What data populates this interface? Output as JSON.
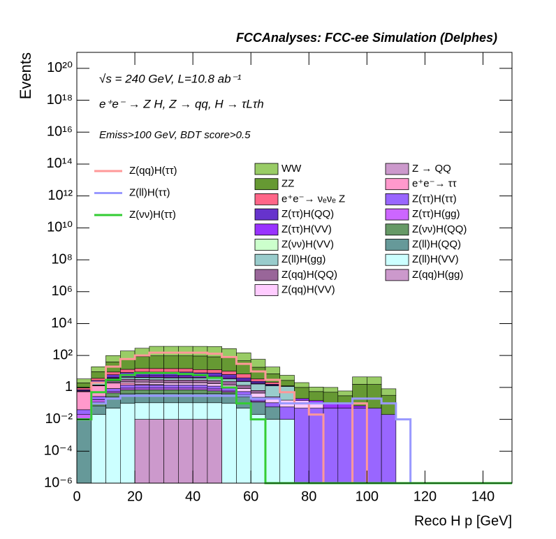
{
  "chart_data": {
    "type": "histogram",
    "title": "FCCAnalyses: FCC-ee Simulation (Delphes)",
    "annotations": [
      "√s = 240 GeV, L=10.8 ab⁻¹",
      "e⁺e⁻ → Z H, Z → qq, H → τLτh",
      "Emiss>100 GeV, BDT score>0.5"
    ],
    "x_label": "Reco H p [GeV]",
    "y_label": "Events",
    "log_y": true,
    "stacked": true,
    "bins": [
      0,
      5,
      10,
      15,
      20,
      25,
      30,
      35,
      40,
      45,
      50,
      55,
      60,
      65,
      70,
      75,
      80,
      85,
      90,
      95,
      100,
      105,
      110,
      115,
      120,
      125,
      130,
      135,
      140,
      145,
      150
    ],
    "xlim": [
      0,
      150
    ],
    "xticks": [
      0,
      20,
      40,
      60,
      80,
      100,
      120,
      140
    ],
    "ylim": [
      1e-06,
      1e+21
    ],
    "yticks": [
      {
        "value": 1e-06,
        "label": "10⁻⁶"
      },
      {
        "value": 0.0001,
        "label": "10⁻⁴"
      },
      {
        "value": 0.01,
        "label": "10⁻²"
      },
      1,
      {
        "value": 100,
        "label": "10²"
      },
      {
        "value": 10000,
        "label": "10⁴"
      },
      {
        "value": 1000000.0,
        "label": "10⁶"
      },
      {
        "value": 100000000.0,
        "label": "10⁸"
      },
      {
        "value": 10000000000.0,
        "label": "10¹⁰"
      },
      {
        "value": 1000000000000.0,
        "label": "10¹²"
      },
      {
        "value": 100000000000000.0,
        "label": "10¹⁴"
      },
      {
        "value": 1e+16,
        "label": "10¹⁶"
      },
      {
        "value": 1e+18,
        "label": "10¹⁸"
      },
      {
        "value": 1e+20,
        "label": "10²⁰"
      }
    ],
    "series": [
      {
        "name": "WW",
        "color": "#99cc66",
        "values": [
          1.5,
          10,
          60,
          130,
          200,
          280,
          280,
          280,
          280,
          280,
          200,
          100,
          40,
          12,
          3,
          1,
          0.5,
          0.5,
          0.3,
          3,
          3,
          0.5,
          0,
          0,
          0,
          0,
          0,
          0,
          0,
          0
        ]
      },
      {
        "name": "ZZ",
        "color": "#669933",
        "values": [
          1,
          6,
          30,
          50,
          70,
          80,
          80,
          80,
          80,
          70,
          60,
          40,
          15,
          5,
          1.5,
          0.8,
          0.4,
          0.4,
          0.2,
          1.5,
          1.5,
          0.3,
          0,
          0,
          0,
          0,
          0,
          0,
          0,
          0
        ]
      },
      {
        "name": "e⁺e⁻→ νₑνₑ Z",
        "color": "#ff6688",
        "values": [
          0.2,
          1,
          3,
          5,
          6,
          6,
          6,
          6,
          5,
          5,
          4,
          3,
          1,
          0.5,
          0,
          0,
          0,
          0,
          0,
          0,
          0,
          0,
          0,
          0,
          0,
          0,
          0,
          0,
          0,
          0
        ]
      },
      {
        "name": "Z(ττ)H(QQ)",
        "color": "#6633cc",
        "values": [
          0.1,
          0.5,
          2,
          3,
          4,
          4,
          4,
          4,
          3,
          3,
          2,
          1,
          0.5,
          0.2,
          0.05,
          0,
          0,
          0,
          0,
          0,
          0,
          0,
          0,
          0,
          0,
          0,
          0,
          0,
          0,
          0
        ]
      },
      {
        "name": "Z(ττ)H(VV)",
        "color": "#9933ff",
        "values": [
          0.05,
          0.2,
          0.5,
          1,
          1,
          1,
          1,
          1,
          1,
          1,
          0.8,
          0.5,
          0.2,
          0.1,
          0.05,
          0.05,
          0.05,
          0.05,
          0.05,
          0.02,
          0,
          0,
          0,
          0,
          0,
          0,
          0,
          0,
          0,
          0
        ]
      },
      {
        "name": "Z(νν)H(VV)",
        "color": "#ccffcc",
        "values": [
          0.02,
          0.1,
          0.2,
          0.3,
          0.3,
          0.3,
          0.3,
          0.3,
          0.3,
          0.3,
          0.2,
          0.1,
          0.05,
          0.02,
          0,
          0,
          0,
          0,
          0,
          0,
          0,
          0,
          0,
          0,
          0,
          0,
          0,
          0,
          0,
          0
        ]
      },
      {
        "name": "Z(ll)H(gg)",
        "color": "#99cccc",
        "values": [
          0.01,
          0.5,
          1,
          1,
          1,
          1,
          1,
          1,
          1,
          1,
          1,
          1,
          1,
          1,
          1,
          0,
          0,
          0,
          0,
          0,
          0,
          0,
          0,
          0,
          0,
          0,
          0,
          0,
          0,
          0
        ]
      },
      {
        "name": "Z(qq)H(QQ)",
        "color": "#996699",
        "values": [
          0,
          0.1,
          0.5,
          1,
          1,
          1,
          1,
          1,
          1,
          1,
          1,
          0.5,
          0.2,
          0.05,
          0,
          0,
          0,
          0,
          0,
          0,
          0,
          0,
          0,
          0,
          0,
          0,
          0,
          0,
          0,
          0
        ]
      },
      {
        "name": "Z(qq)H(VV)",
        "color": "#ffccff",
        "values": [
          0,
          0.05,
          0.2,
          0.4,
          0.5,
          0.5,
          0.5,
          0.5,
          0.5,
          0.5,
          0.5,
          0.3,
          0.2,
          0.1,
          0.1,
          0.1,
          0.05,
          0,
          0,
          0,
          0,
          0,
          0,
          0,
          0,
          0,
          0,
          0,
          0,
          0
        ]
      },
      {
        "name": "Z → QQ",
        "color": "#cc99cc",
        "values": [
          0,
          0,
          0,
          0,
          0.03,
          0,
          0,
          0,
          0,
          0,
          0,
          0,
          0,
          0,
          0,
          0,
          0,
          0,
          0,
          0,
          0,
          0,
          0,
          0,
          0,
          0,
          0,
          0,
          0,
          0
        ]
      },
      {
        "name": "e⁺e⁻→ ττ",
        "color": "#ff99cc",
        "values": [
          0.5,
          1,
          1,
          0.5,
          0.2,
          0.1,
          0,
          0,
          0,
          0,
          0,
          0,
          0,
          0,
          0,
          0,
          0,
          0,
          0,
          0,
          0,
          0,
          0,
          0,
          0,
          0,
          0,
          0,
          0,
          0
        ]
      },
      {
        "name": "Z(ττ)H(ττ)",
        "color": "#9966ff",
        "values": [
          0.02,
          0.1,
          0.3,
          0.5,
          0.5,
          0.5,
          0.5,
          0.5,
          0.5,
          0.4,
          0.3,
          0.2,
          0.1,
          0.05,
          0.05,
          0.05,
          0.05,
          0.05,
          0.05,
          0.05,
          0.05,
          0.02,
          0,
          0,
          0,
          0,
          0,
          0,
          0,
          0
        ]
      },
      {
        "name": "Z(ττ)H(gg)",
        "color": "#cc66ff",
        "values": [
          0.01,
          0.05,
          0.1,
          0.2,
          0.2,
          0.2,
          0.2,
          0.2,
          0.2,
          0.2,
          0.1,
          0.05,
          0.02,
          0,
          0,
          0,
          0,
          0,
          0,
          0,
          0,
          0,
          0,
          0,
          0,
          0,
          0,
          0,
          0,
          0
        ]
      },
      {
        "name": "Z(νν)H(QQ)",
        "color": "#669966",
        "values": [
          0,
          0.05,
          0.2,
          0.3,
          0.3,
          0.3,
          0.3,
          0.3,
          0.3,
          0.2,
          0.1,
          0.05,
          0,
          0,
          0,
          0,
          0,
          0,
          0,
          0,
          0,
          0,
          0,
          0,
          0,
          0,
          0,
          0,
          0,
          0
        ]
      },
      {
        "name": "Z(ll)H(QQ)",
        "color": "#669999",
        "values": [
          0.01,
          0.05,
          0.2,
          0.3,
          0.3,
          0.3,
          0.3,
          0.3,
          0.3,
          0.3,
          0.3,
          0.2,
          0.1,
          0.05,
          0,
          0,
          0,
          0,
          0,
          0,
          0,
          0,
          0,
          0,
          0,
          0,
          0,
          0,
          0,
          0
        ]
      },
      {
        "name": "Z(ll)H(VV)",
        "color": "#ccffff",
        "values": [
          0,
          0.02,
          0.05,
          0.1,
          0.1,
          0.1,
          0.1,
          0.1,
          0.1,
          0.1,
          0.1,
          0.05,
          0.02,
          0.01,
          0.01,
          0,
          0,
          0,
          0,
          0,
          0,
          0,
          0,
          0,
          0,
          0,
          0,
          0,
          0,
          0
        ]
      },
      {
        "name": "Z(qq)H(gg)",
        "color": "#cc99cc",
        "values": [
          0,
          0,
          0,
          0,
          0.01,
          0.01,
          0.01,
          0.01,
          0.01,
          0.01,
          0,
          0,
          0,
          0,
          0,
          0,
          0,
          0,
          0,
          0,
          0,
          0,
          0,
          0,
          0,
          0,
          0,
          0,
          0,
          0
        ]
      },
      {
        "name": "Z(qq)H(ττ)",
        "color": "#ff9999",
        "histtype": "step",
        "values": [
          0.01,
          2,
          20,
          60,
          100,
          150,
          150,
          150,
          150,
          130,
          80,
          30,
          10,
          3,
          0.5,
          0.1,
          0.02,
          0,
          0,
          0.1,
          0,
          0,
          0,
          0,
          0,
          0,
          0,
          0,
          0,
          0
        ]
      },
      {
        "name": "Z(ll)H(ττ)",
        "color": "#9999ff",
        "histtype": "step",
        "values": [
          0.01,
          0.1,
          0.2,
          0.3,
          0.3,
          0.3,
          0.3,
          0.3,
          0.3,
          0.3,
          0.3,
          0.3,
          0.2,
          0.2,
          0.1,
          0.1,
          0.1,
          0.1,
          0.1,
          0.2,
          0.2,
          0.1,
          0.01,
          0,
          0,
          0,
          0,
          0,
          0,
          0
        ]
      },
      {
        "name": "Z(νν)H(ττ)",
        "color": "#33cc33",
        "histtype": "step",
        "values": [
          0.01,
          0.5,
          3,
          6,
          8,
          8,
          8,
          7,
          6,
          4,
          1,
          0.1,
          0.01,
          0,
          0,
          0,
          0,
          0,
          0,
          0,
          0,
          0,
          0,
          0,
          0,
          0,
          0,
          0,
          0,
          0
        ]
      }
    ]
  }
}
